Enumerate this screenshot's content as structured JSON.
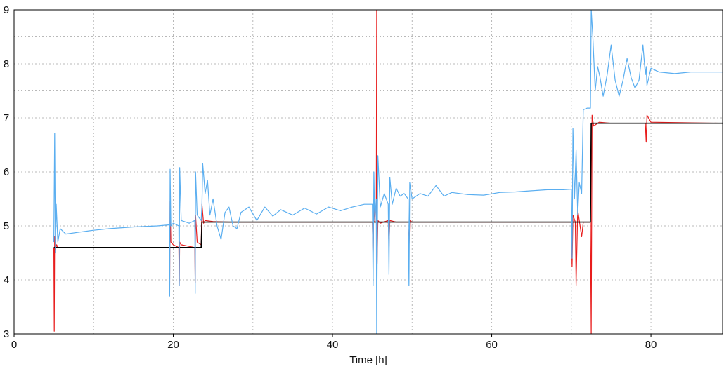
{
  "chart_data": {
    "type": "line",
    "title": "",
    "xlabel": "Time [h]",
    "ylabel": "",
    "xlim": [
      0,
      89
    ],
    "ylim": [
      3,
      9
    ],
    "xticks": [
      0,
      20,
      40,
      60,
      80
    ],
    "yticks": [
      3,
      4,
      5,
      6,
      7,
      8,
      9
    ],
    "grid": true,
    "legend": "none",
    "colors": {
      "blue": "#5aaef0",
      "red": "#e81d1d",
      "black": "#000000",
      "grid": "#b8b8b8",
      "axis": "#000000"
    },
    "series": [
      {
        "color": "#000000",
        "x": [
          5.0,
          5.2,
          23.5,
          23.6,
          72.4,
          72.5,
          89
        ],
        "y": [
          4.6,
          4.6,
          4.6,
          5.07,
          5.07,
          6.9,
          6.9
        ]
      },
      {
        "color": "#e81d1d",
        "x": [
          5.0,
          5.05,
          5.1,
          5.2,
          5.35,
          5.5,
          6.0,
          19.5,
          19.55,
          19.6,
          19.7,
          20.0,
          20.7,
          20.75,
          20.8,
          21.0,
          22.7,
          22.75,
          22.8,
          23.0,
          23.5,
          23.6,
          23.8,
          24.0,
          25.0,
          27.0,
          45.0,
          45.1,
          45.2,
          45.3,
          45.5,
          45.55,
          45.6,
          45.7,
          46.0,
          47.0,
          47.1,
          47.2,
          48.0,
          49.5,
          49.6,
          49.7,
          50.0,
          70.0,
          70.1,
          70.2,
          70.5,
          70.6,
          70.8,
          71.0,
          71.3,
          71.5,
          72.4,
          72.5,
          72.6,
          72.8,
          73.5,
          75.0,
          79.3,
          79.4,
          79.5,
          80.0,
          89.0
        ],
        "y": [
          4.6,
          3.05,
          4.8,
          4.55,
          4.65,
          4.6,
          4.6,
          4.6,
          3.85,
          5.45,
          4.7,
          4.65,
          4.6,
          3.9,
          4.7,
          4.65,
          4.6,
          3.95,
          5.2,
          4.7,
          4.65,
          5.4,
          5.05,
          5.1,
          5.08,
          5.07,
          5.07,
          4.4,
          5.5,
          5.07,
          5.07,
          9.0,
          4.3,
          5.1,
          5.05,
          5.1,
          4.6,
          5.1,
          5.07,
          5.07,
          4.6,
          5.1,
          5.07,
          5.07,
          4.25,
          5.2,
          5.07,
          3.9,
          5.3,
          5.1,
          4.8,
          5.07,
          5.07,
          3.0,
          7.05,
          6.85,
          6.92,
          6.9,
          6.9,
          6.55,
          7.05,
          6.92,
          6.9
        ]
      },
      {
        "color": "#5aaef0",
        "x": [
          5.0,
          5.1,
          5.2,
          5.3,
          5.5,
          5.8,
          6.5,
          8.0,
          10.0,
          12.0,
          15.0,
          18.0,
          19.5,
          19.55,
          19.6,
          19.7,
          20.0,
          20.7,
          20.75,
          20.8,
          21.0,
          22.0,
          22.7,
          22.75,
          22.8,
          23.0,
          23.5,
          23.6,
          23.7,
          24.0,
          24.3,
          24.6,
          25.0,
          25.5,
          26.0,
          26.5,
          27.0,
          27.5,
          28.0,
          28.5,
          29.5,
          30.5,
          31.5,
          32.5,
          33.5,
          35.0,
          36.5,
          38.0,
          39.5,
          41.0,
          42.5,
          44.0,
          45.0,
          45.1,
          45.2,
          45.3,
          45.5,
          45.55,
          45.7,
          46.0,
          46.5,
          47.0,
          47.1,
          47.2,
          47.5,
          48.0,
          48.5,
          49.0,
          49.5,
          49.6,
          49.7,
          50.0,
          51.0,
          52.0,
          53.0,
          54.0,
          55.0,
          57.0,
          59.0,
          61.0,
          63.0,
          65.0,
          67.0,
          69.0,
          70.0,
          70.1,
          70.2,
          70.4,
          70.6,
          70.8,
          71.0,
          71.3,
          71.5,
          72.0,
          72.3,
          72.4,
          72.5,
          72.7,
          73.0,
          73.3,
          73.6,
          74.0,
          74.5,
          75.0,
          75.5,
          76.0,
          76.5,
          77.0,
          77.5,
          78.0,
          78.5,
          79.0,
          79.3,
          79.4,
          79.5,
          80.0,
          81.0,
          83.0,
          85.0,
          87.0,
          89.0
        ],
        "y": [
          4.7,
          6.72,
          4.5,
          5.4,
          4.7,
          4.95,
          4.85,
          4.88,
          4.92,
          4.95,
          4.98,
          5.0,
          5.02,
          3.7,
          6.05,
          5.0,
          5.05,
          5.0,
          3.9,
          6.08,
          5.1,
          5.05,
          5.1,
          3.75,
          6.0,
          5.2,
          5.1,
          5.4,
          6.15,
          5.6,
          5.85,
          5.2,
          5.5,
          5.0,
          4.75,
          5.25,
          5.35,
          5.0,
          4.95,
          5.25,
          5.35,
          5.1,
          5.35,
          5.18,
          5.3,
          5.2,
          5.33,
          5.22,
          5.35,
          5.28,
          5.35,
          5.4,
          5.4,
          3.9,
          6.0,
          5.1,
          5.5,
          3.0,
          6.3,
          5.35,
          5.6,
          5.4,
          4.1,
          5.9,
          5.4,
          5.7,
          5.55,
          5.6,
          5.5,
          3.9,
          5.8,
          5.5,
          5.6,
          5.55,
          5.75,
          5.55,
          5.62,
          5.58,
          5.57,
          5.62,
          5.63,
          5.65,
          5.67,
          5.67,
          5.68,
          4.4,
          6.8,
          5.5,
          6.4,
          5.2,
          5.8,
          5.6,
          7.15,
          7.18,
          7.18,
          7.18,
          9.0,
          8.5,
          7.5,
          7.95,
          7.75,
          7.4,
          7.8,
          8.35,
          7.7,
          7.4,
          7.7,
          8.1,
          7.75,
          7.55,
          7.7,
          8.35,
          7.8,
          7.95,
          7.6,
          7.92,
          7.85,
          7.82,
          7.85,
          7.85,
          7.85
        ]
      }
    ]
  }
}
